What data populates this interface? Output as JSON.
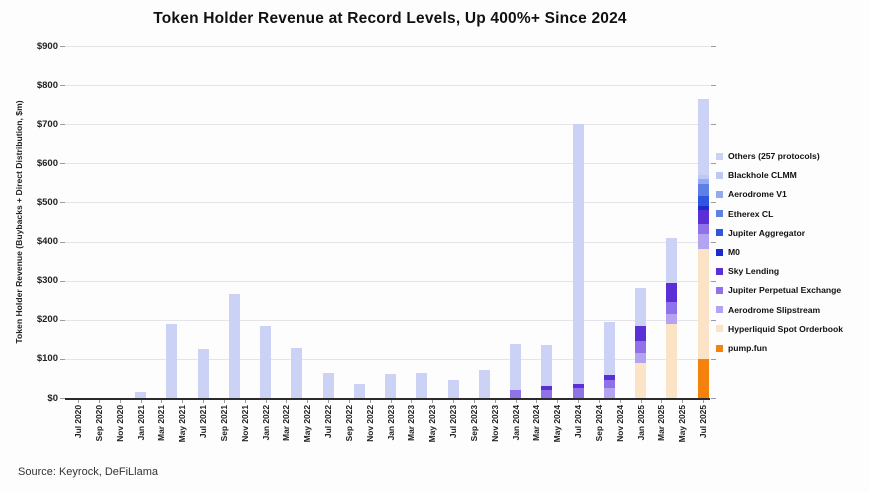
{
  "title": "Token Holder Revenue at Record Levels, Up 400%+ Since 2024",
  "source": "Source: Keyrock, DeFiLlama",
  "chart_data": {
    "type": "bar",
    "stacked": true,
    "title": "Token Holder Revenue at Record Levels, Up 400%+ Since 2024",
    "xlabel": "",
    "ylabel": "Token Holder Revenue (Buybacks + Direct Distribution, $m)",
    "ylim": [
      0,
      900
    ],
    "ytick_step": 100,
    "ytick_labels": [
      "$0",
      "$100",
      "$200",
      "$300",
      "$400",
      "$500",
      "$600",
      "$700",
      "$800",
      "$900"
    ],
    "grid": "horizontal",
    "legend_position": "right",
    "xtick_labels": [
      "Jul 2020",
      "Sep 2020",
      "Nov 2020",
      "Jan 2021",
      "Mar 2021",
      "May 2021",
      "Jul 2021",
      "Sep 2021",
      "Nov 2021",
      "Jan 2022",
      "Mar 2022",
      "May 2022",
      "Jul 2022",
      "Sep 2022",
      "Nov 2022",
      "Jan 2023",
      "Mar 2023",
      "May 2023",
      "Jul 2023",
      "Sep 2023",
      "Nov 2023",
      "Jan 2024",
      "Mar 2024",
      "May 2024",
      "Jul 2024",
      "Sep 2024",
      "Nov 2024",
      "Jan 2025",
      "Mar 2025",
      "May 2025",
      "Jul 2025"
    ],
    "x_axis_note": "continuous time axis Jul 2020 - Jul 2025, tick labels every 2 months, bars plotted quarterly",
    "legend": [
      {
        "label": "Others (257 protocols)",
        "color": "#ccd2f5"
      },
      {
        "label": "Blackhole CLMM",
        "color": "#bec8f7"
      },
      {
        "label": "Aerodrome V1",
        "color": "#94a9f0"
      },
      {
        "label": "Etherex CL",
        "color": "#5f7fe8"
      },
      {
        "label": "Jupiter Aggregator",
        "color": "#2f55e0"
      },
      {
        "label": "M0",
        "color": "#1b2bd0"
      },
      {
        "label": "Sky Lending",
        "color": "#5a2fd6"
      },
      {
        "label": "Jupiter Perpetual Exchange",
        "color": "#8f72e8"
      },
      {
        "label": "Aerodrome Slipstream",
        "color": "#b3a3f0"
      },
      {
        "label": "Hyperliquid Spot Orderbook",
        "color": "#fae3c6"
      },
      {
        "label": "pump.fun",
        "color": "#f5820d"
      }
    ],
    "series_order_bottom_to_top": [
      "pump.fun",
      "Hyperliquid Spot Orderbook",
      "Aerodrome Slipstream",
      "Jupiter Perpetual Exchange",
      "Sky Lending",
      "M0",
      "Jupiter Aggregator",
      "Etherex CL",
      "Aerodrome V1",
      "Blackhole CLMM",
      "Others (257 protocols)"
    ],
    "bars": [
      {
        "quarter": "Jan 2021",
        "month_index": 6,
        "total": 15,
        "segments": {
          "Others (257 protocols)": 15
        }
      },
      {
        "quarter": "Apr 2021",
        "month_index": 9,
        "total": 190,
        "segments": {
          "Others (257 protocols)": 190
        }
      },
      {
        "quarter": "Jul 2021",
        "month_index": 12,
        "total": 125,
        "segments": {
          "Others (257 protocols)": 125
        }
      },
      {
        "quarter": "Oct 2021",
        "month_index": 15,
        "total": 265,
        "segments": {
          "Others (257 protocols)": 265
        }
      },
      {
        "quarter": "Jan 2022",
        "month_index": 18,
        "total": 185,
        "segments": {
          "Others (257 protocols)": 185
        }
      },
      {
        "quarter": "Apr 2022",
        "month_index": 21,
        "total": 128,
        "segments": {
          "Others (257 protocols)": 128
        }
      },
      {
        "quarter": "Jul 2022",
        "month_index": 24,
        "total": 65,
        "segments": {
          "Others (257 protocols)": 65
        }
      },
      {
        "quarter": "Oct 2022",
        "month_index": 27,
        "total": 35,
        "segments": {
          "Others (257 protocols)": 35
        }
      },
      {
        "quarter": "Jan 2023",
        "month_index": 30,
        "total": 62,
        "segments": {
          "Others (257 protocols)": 62
        }
      },
      {
        "quarter": "Apr 2023",
        "month_index": 33,
        "total": 64,
        "segments": {
          "Others (257 protocols)": 64
        }
      },
      {
        "quarter": "Jul 2023",
        "month_index": 36,
        "total": 46,
        "segments": {
          "Others (257 protocols)": 46
        }
      },
      {
        "quarter": "Oct 2023",
        "month_index": 39,
        "total": 72,
        "segments": {
          "Others (257 protocols)": 72
        }
      },
      {
        "quarter": "Jan 2024",
        "month_index": 42,
        "total": 138,
        "segments": {
          "Jupiter Perpetual Exchange": 20,
          "Others (257 protocols)": 118
        }
      },
      {
        "quarter": "Apr 2024",
        "month_index": 45,
        "total": 136,
        "segments": {
          "Jupiter Perpetual Exchange": 20,
          "Sky Lending": 10,
          "Others (257 protocols)": 106
        }
      },
      {
        "quarter": "Jul 2024",
        "month_index": 48,
        "total": 700,
        "segments": {
          "Jupiter Perpetual Exchange": 25,
          "Sky Lending": 10,
          "Others (257 protocols)": 665
        }
      },
      {
        "quarter": "Oct 2024",
        "month_index": 51,
        "total": 195,
        "segments": {
          "Aerodrome Slipstream": 25,
          "Jupiter Perpetual Exchange": 20,
          "Sky Lending": 15,
          "Others (257 protocols)": 135
        }
      },
      {
        "quarter": "Jan 2025",
        "month_index": 54,
        "total": 280,
        "segments": {
          "Hyperliquid Spot Orderbook": 90,
          "Aerodrome Slipstream": 25,
          "Jupiter Perpetual Exchange": 30,
          "Sky Lending": 40,
          "Others (257 protocols)": 95
        }
      },
      {
        "quarter": "Apr 2025",
        "month_index": 57,
        "total": 410,
        "segments": {
          "Hyperliquid Spot Orderbook": 190,
          "Aerodrome Slipstream": 25,
          "Jupiter Perpetual Exchange": 30,
          "Sky Lending": 50,
          "Others (257 protocols)": 115
        }
      },
      {
        "quarter": "Jul 2025",
        "month_index": 60,
        "total": 765,
        "segments": {
          "pump.fun": 100,
          "Hyperliquid Spot Orderbook": 280,
          "Aerodrome Slipstream": 40,
          "Jupiter Perpetual Exchange": 25,
          "Sky Lending": 35,
          "M0": 12,
          "Jupiter Aggregator": 25,
          "Etherex CL": 30,
          "Aerodrome V1": 12,
          "Blackhole CLMM": 10,
          "Others (257 protocols)": 196
        }
      }
    ]
  }
}
